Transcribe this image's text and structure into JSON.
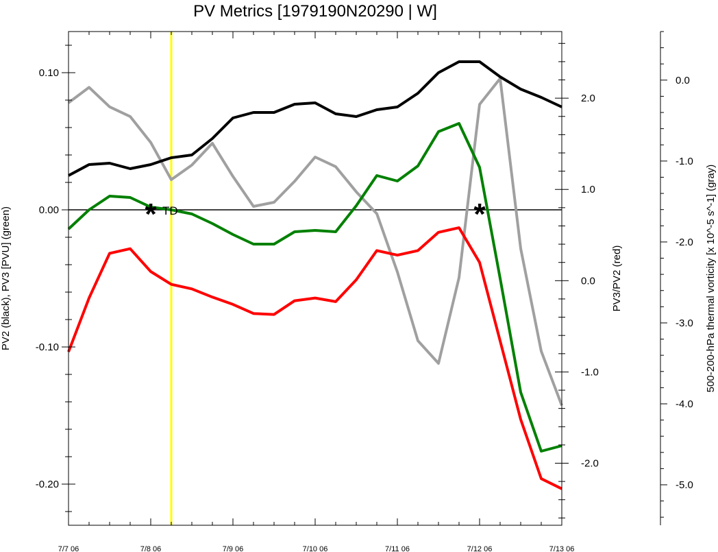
{
  "chart_data": {
    "type": "line",
    "title": "PV Metrics [1979190N20290 | W]",
    "x_labels": [
      "7/7 06",
      "7/8 06",
      "7/9 06",
      "7/10 06",
      "7/11 06",
      "7/12 06",
      "7/13 06"
    ],
    "x_range": [
      0,
      6
    ],
    "x": [
      0,
      0.25,
      0.5,
      0.75,
      1,
      1.25,
      1.5,
      1.75,
      2,
      2.25,
      2.5,
      2.75,
      3,
      3.25,
      3.5,
      3.75,
      4,
      4.25,
      4.5,
      4.75,
      5,
      5.25,
      5.5,
      5.75,
      6
    ],
    "axes": {
      "left": {
        "label": "PV2 (black), PV3 [PVU] (green)",
        "range": [
          -0.23,
          0.13
        ],
        "ticks": [
          0.1,
          0.0,
          -0.1,
          -0.2
        ],
        "tick_labels": [
          "0.10",
          "0.00",
          "-0.10",
          "-0.20"
        ]
      },
      "right": {
        "label": "PV3/PV2 (red)",
        "range": [
          -2.68,
          2.73
        ],
        "ticks": [
          2,
          1,
          0,
          -1,
          -2
        ],
        "tick_labels": [
          "2.0",
          "1.0",
          "0.0",
          "-1.0",
          "-2.0"
        ]
      },
      "far_right": {
        "label": "500-200-hPa thermal vorticity [x 10^-5 s^-1] (gray)",
        "range": [
          -5.5,
          0.6
        ],
        "ticks": [
          0,
          -1,
          -2,
          -3,
          -4,
          -5
        ],
        "tick_labels": [
          "0.0",
          "-1.0",
          "-2.0",
          "-3.0",
          "-4.0",
          "-5.0"
        ]
      }
    },
    "series": [
      {
        "axis": "left",
        "color": "#000000",
        "values": [
          0.025,
          0.033,
          0.034,
          0.03,
          0.033,
          0.038,
          0.04,
          0.052,
          0.067,
          0.071,
          0.071,
          0.077,
          0.078,
          0.07,
          0.068,
          0.073,
          0.075,
          0.085,
          0.1,
          0.108,
          0.108,
          0.097,
          0.088,
          0.082,
          0.075
        ]
      },
      {
        "axis": "left",
        "color": "#008000",
        "values": [
          -0.014,
          0.0,
          0.01,
          0.009,
          0.002,
          0.0,
          -0.003,
          -0.01,
          -0.018,
          -0.025,
          -0.025,
          -0.016,
          -0.015,
          -0.016,
          0.003,
          0.025,
          0.021,
          0.032,
          0.057,
          0.063,
          0.031,
          -0.05,
          -0.133,
          -0.176,
          -0.172
        ]
      },
      {
        "axis": "right",
        "color": "#ff0000",
        "values": [
          -0.78,
          -0.19,
          0.3,
          0.35,
          0.1,
          -0.04,
          -0.09,
          -0.18,
          -0.26,
          -0.36,
          -0.37,
          -0.22,
          -0.19,
          -0.23,
          0.01,
          0.33,
          0.28,
          0.33,
          0.53,
          0.58,
          0.2,
          -0.66,
          -1.52,
          -2.17,
          -2.28
        ]
      },
      {
        "axis": "far_right",
        "color": "#a0a0a0",
        "values": [
          -0.28,
          -0.09,
          -0.33,
          -0.45,
          -0.77,
          -1.23,
          -1.05,
          -0.78,
          -1.19,
          -1.56,
          -1.51,
          -1.25,
          -0.95,
          -1.07,
          -1.38,
          -1.65,
          -2.37,
          -3.22,
          -3.5,
          -2.44,
          -0.3,
          0.02,
          -2.08,
          -3.35,
          -4.02
        ]
      }
    ],
    "reference_line": {
      "axis": "left",
      "value": 0,
      "color": "#000000"
    },
    "vertical_line": {
      "x": 1.25,
      "color": "#ffff00"
    },
    "markers": [
      {
        "x": 1.0,
        "y": 0.0,
        "symbol": "*",
        "label": "TD"
      },
      {
        "x": 5.0,
        "y": 0.0,
        "symbol": "*",
        "label": ""
      }
    ],
    "grid": false,
    "legend": "none"
  }
}
